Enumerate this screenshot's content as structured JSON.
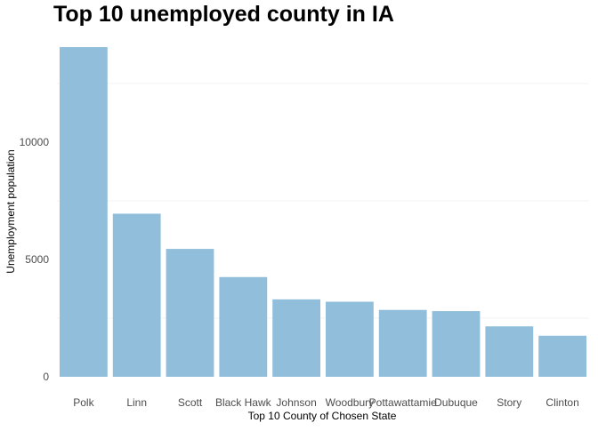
{
  "chart_data": {
    "type": "bar",
    "title": "Top 10 unemployed county in IA",
    "xlabel": "Top 10 County of Chosen State",
    "ylabel": "Unemployment population",
    "categories": [
      "Polk",
      "Linn",
      "Scott",
      "Black Hawk",
      "Johnson",
      "Woodbury",
      "Pottawattamie",
      "Dubuque",
      "Story",
      "Clinton"
    ],
    "values": [
      14050,
      6950,
      5450,
      4250,
      3300,
      3200,
      2850,
      2800,
      2150,
      1750
    ],
    "yticks": [
      0,
      5000,
      10000
    ],
    "ytick_labels": [
      "0",
      "5000",
      "10000"
    ],
    "ylim": [
      0,
      14050
    ],
    "grid": true,
    "legend": "none",
    "bar_color": "#91BFDB",
    "grid_color": "#EBEBEB",
    "text_color": "#4D4D4D"
  }
}
